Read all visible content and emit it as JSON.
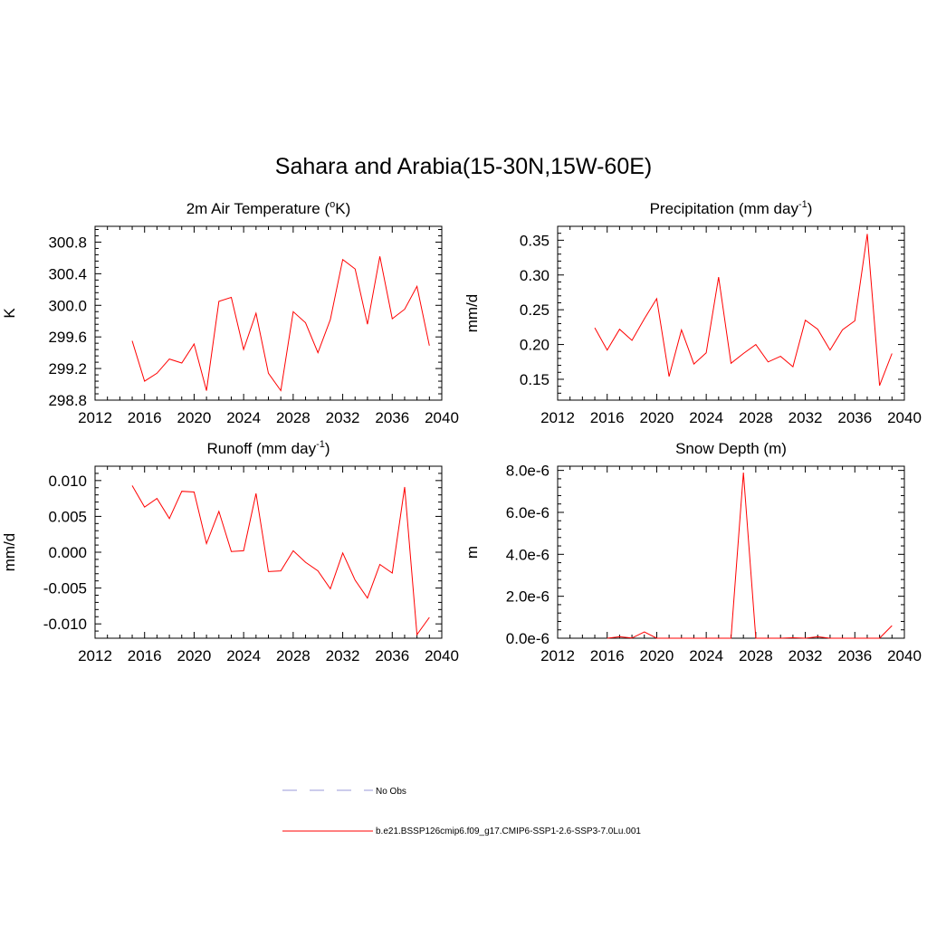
{
  "figure": {
    "title": "Sahara and Arabia(15-30N,15W-60E)"
  },
  "legend": {
    "entries": [
      {
        "label": "No Obs",
        "color": "#9a9ad8",
        "style": "dashed"
      },
      {
        "label": "b.e21.BSSP126cmip6.f09_g17.CMIP6-SSP1-2.6-SSP3-7.0Lu.001",
        "color": "#ff0000",
        "style": "solid"
      }
    ]
  },
  "chart_data": [
    {
      "type": "line",
      "title": "2m Air Temperature (",
      "title_sup": "o",
      "title_after": "K)",
      "ylabel": "K",
      "xlim": [
        2012,
        2040
      ],
      "xticks": [
        2012,
        2016,
        2020,
        2024,
        2028,
        2032,
        2036,
        2040
      ],
      "ylim": [
        298.8,
        301.0
      ],
      "yticks": [
        298.8,
        299.2,
        299.6,
        300.0,
        300.4,
        300.8
      ],
      "ytick_labels": [
        "298.8",
        "299.2",
        "299.6",
        "300.0",
        "300.4",
        "300.8"
      ],
      "grid": false,
      "color": "#ff0000",
      "x": [
        2015,
        2016,
        2017,
        2018,
        2019,
        2020,
        2021,
        2022,
        2023,
        2024,
        2025,
        2026,
        2027,
        2028,
        2029,
        2030,
        2031,
        2032,
        2033,
        2034,
        2035,
        2036,
        2037,
        2038,
        2039
      ],
      "y": [
        299.55,
        299.04,
        299.14,
        299.32,
        299.27,
        299.51,
        298.92,
        300.05,
        300.1,
        299.44,
        299.9,
        299.14,
        298.92,
        299.92,
        299.78,
        299.4,
        299.82,
        300.58,
        300.46,
        299.76,
        300.62,
        299.83,
        299.95,
        300.24,
        299.49
      ]
    },
    {
      "type": "line",
      "title": "Precipitation (mm day",
      "title_sup": "-1",
      "title_after": ")",
      "ylabel": "mm/d",
      "xlim": [
        2012,
        2040
      ],
      "xticks": [
        2012,
        2016,
        2020,
        2024,
        2028,
        2032,
        2036,
        2040
      ],
      "ylim": [
        0.12,
        0.37
      ],
      "yticks": [
        0.15,
        0.2,
        0.25,
        0.3,
        0.35
      ],
      "ytick_labels": [
        "0.15",
        "0.20",
        "0.25",
        "0.30",
        "0.35"
      ],
      "grid": false,
      "color": "#ff0000",
      "x": [
        2015,
        2016,
        2017,
        2018,
        2019,
        2020,
        2021,
        2022,
        2023,
        2024,
        2025,
        2026,
        2027,
        2028,
        2029,
        2030,
        2031,
        2032,
        2033,
        2034,
        2035,
        2036,
        2037,
        2038,
        2039
      ],
      "y": [
        0.224,
        0.192,
        0.222,
        0.206,
        0.237,
        0.266,
        0.154,
        0.221,
        0.172,
        0.188,
        0.297,
        0.173,
        0.187,
        0.2,
        0.175,
        0.183,
        0.168,
        0.235,
        0.222,
        0.192,
        0.221,
        0.234,
        0.359,
        0.141,
        0.187
      ]
    },
    {
      "type": "line",
      "title": "Runoff (mm day",
      "title_sup": "-1",
      "title_after": ")",
      "ylabel": "mm/d",
      "xlim": [
        2012,
        2040
      ],
      "xticks": [
        2012,
        2016,
        2020,
        2024,
        2028,
        2032,
        2036,
        2040
      ],
      "ylim": [
        -0.012,
        0.012
      ],
      "yticks": [
        -0.01,
        -0.005,
        0.0,
        0.005,
        0.01
      ],
      "ytick_labels": [
        "-0.010",
        "-0.005",
        "0.000",
        "0.005",
        "0.010"
      ],
      "grid": false,
      "color": "#ff0000",
      "x": [
        2015,
        2016,
        2017,
        2018,
        2019,
        2020,
        2021,
        2022,
        2023,
        2024,
        2025,
        2026,
        2027,
        2028,
        2029,
        2030,
        2031,
        2032,
        2033,
        2034,
        2035,
        2036,
        2037,
        2038,
        2039
      ],
      "y": [
        0.0093,
        0.0063,
        0.0075,
        0.0047,
        0.0085,
        0.0084,
        0.0012,
        0.0057,
        0.0001,
        0.0002,
        0.0082,
        -0.0027,
        -0.0026,
        0.0002,
        -0.0014,
        -0.0026,
        -0.0051,
        -0.0001,
        -0.0039,
        -0.0064,
        -0.0017,
        -0.0029,
        0.0091,
        -0.0115,
        -0.0091
      ]
    },
    {
      "type": "line",
      "title": "Snow Depth (m)",
      "title_sup": "",
      "title_after": "",
      "ylabel": "m",
      "xlim": [
        2012,
        2040
      ],
      "xticks": [
        2012,
        2016,
        2020,
        2024,
        2028,
        2032,
        2036,
        2040
      ],
      "ylim": [
        0,
        8.2e-06
      ],
      "yticks": [
        0,
        2e-06,
        4e-06,
        6e-06,
        8e-06
      ],
      "ytick_labels": [
        "0.0e-6",
        "2.0e-6",
        "4.0e-6",
        "6.0e-6",
        "8.0e-6"
      ],
      "grid": false,
      "color": "#ff0000",
      "x": [
        2016,
        2017,
        2018,
        2019,
        2020,
        2021,
        2022,
        2023,
        2024,
        2025,
        2026,
        2027,
        2028,
        2029,
        2030,
        2031,
        2032,
        2033,
        2034,
        2035,
        2036,
        2037,
        2038,
        2039
      ],
      "y": [
        0,
        7e-08,
        1e-08,
        3e-07,
        0,
        0,
        0,
        0,
        0,
        0,
        0,
        7.9e-06,
        0,
        0,
        0,
        2e-08,
        0,
        7e-08,
        0,
        0,
        0,
        0,
        0,
        6e-07
      ]
    }
  ]
}
